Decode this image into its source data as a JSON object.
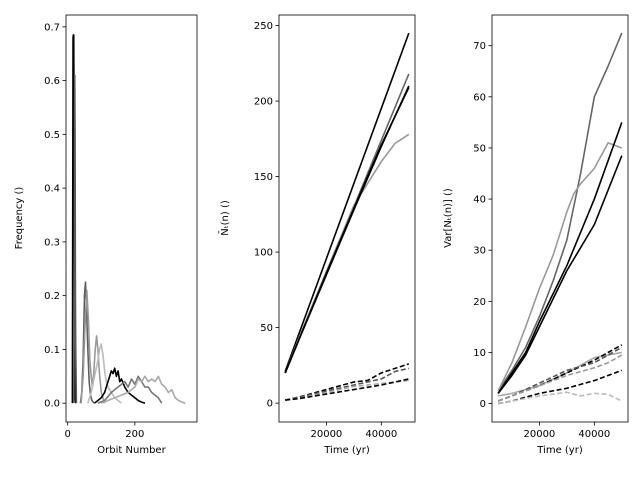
{
  "chart_data": [
    {
      "type": "line",
      "xlabel": "Orbit Number",
      "ylabel": "Frequency ()",
      "xlim": [
        -5,
        385
      ],
      "ylim": [
        -0.035,
        0.722
      ],
      "xticks": [
        0,
        200
      ],
      "yticks": [
        0.0,
        0.1,
        0.2,
        0.3,
        0.4,
        0.5,
        0.6,
        0.7
      ],
      "ytick_labels": [
        "0.0",
        "0.1",
        "0.2",
        "0.3",
        "0.4",
        "0.5",
        "0.6",
        "0.7"
      ],
      "series": [
        {
          "color": "#000000",
          "style": "solid",
          "x": [
            14,
            16,
            17,
            18,
            19,
            20,
            21,
            22,
            24
          ],
          "y": [
            0.0,
            0.68,
            0.685,
            0.685,
            0.5,
            0.2,
            0.05,
            0.01,
            0.0
          ]
        },
        {
          "color": "#5a5a5a",
          "style": "solid",
          "x": [
            18,
            20,
            21,
            22,
            23,
            24,
            26
          ],
          "y": [
            0.0,
            0.2,
            0.61,
            0.5,
            0.2,
            0.1,
            0.0
          ]
        },
        {
          "color": "#606060",
          "style": "solid",
          "x": [
            38,
            42,
            46,
            50,
            53,
            56,
            60,
            64,
            68,
            72,
            76,
            80
          ],
          "y": [
            0.0,
            0.02,
            0.08,
            0.2,
            0.225,
            0.18,
            0.1,
            0.04,
            0.015,
            0.005,
            0.002,
            0.0
          ]
        },
        {
          "color": "#999999",
          "style": "solid",
          "x": [
            40,
            46,
            52,
            57,
            62,
            66,
            70,
            74,
            78,
            82,
            86,
            90,
            94,
            100,
            110
          ],
          "y": [
            0.0,
            0.05,
            0.15,
            0.21,
            0.15,
            0.08,
            0.05,
            0.03,
            0.06,
            0.1,
            0.125,
            0.1,
            0.06,
            0.02,
            0.0
          ]
        },
        {
          "color": "#bbbbbb",
          "style": "solid",
          "x": [
            60,
            70,
            80,
            90,
            95,
            100,
            105,
            110,
            115,
            120,
            130,
            140,
            150,
            160
          ],
          "y": [
            0.0,
            0.02,
            0.05,
            0.08,
            0.1,
            0.11,
            0.09,
            0.06,
            0.04,
            0.03,
            0.02,
            0.01,
            0.005,
            0.0
          ]
        },
        {
          "color": "#000000",
          "style": "solid",
          "x": [
            80,
            90,
            100,
            110,
            115,
            120,
            125,
            130,
            135,
            140,
            145,
            150,
            155,
            160,
            170,
            180,
            190,
            200,
            210,
            220,
            230
          ],
          "y": [
            0.0,
            0.005,
            0.01,
            0.02,
            0.03,
            0.04,
            0.05,
            0.06,
            0.055,
            0.065,
            0.05,
            0.06,
            0.04,
            0.045,
            0.03,
            0.02,
            0.015,
            0.01,
            0.005,
            0.002,
            0.0
          ]
        },
        {
          "color": "#777777",
          "style": "solid",
          "x": [
            90,
            110,
            130,
            150,
            160,
            170,
            180,
            190,
            200,
            210,
            220,
            230,
            240,
            250,
            260,
            270,
            280
          ],
          "y": [
            0.0,
            0.005,
            0.02,
            0.03,
            0.035,
            0.04,
            0.03,
            0.045,
            0.035,
            0.05,
            0.04,
            0.03,
            0.03,
            0.02,
            0.015,
            0.01,
            0.0
          ]
        },
        {
          "color": "#aaaaaa",
          "style": "solid",
          "x": [
            100,
            120,
            140,
            160,
            180,
            200,
            210,
            220,
            230,
            240,
            250,
            260,
            270,
            280,
            290,
            300,
            310,
            320,
            330,
            340,
            350
          ],
          "y": [
            0.0,
            0.005,
            0.01,
            0.015,
            0.02,
            0.03,
            0.045,
            0.04,
            0.05,
            0.04,
            0.045,
            0.04,
            0.05,
            0.035,
            0.03,
            0.02,
            0.025,
            0.01,
            0.005,
            0.002,
            0.0
          ]
        }
      ]
    },
    {
      "type": "line",
      "xlabel": "Time (yr)",
      "ylabel_html": "N̄ₜ(n) ()",
      "xlim": [
        2750,
        52250
      ],
      "ylim": [
        -12.5,
        257
      ],
      "xticks": [
        20000,
        40000
      ],
      "xtick_labels": [
        "20000",
        "40000"
      ],
      "yticks": [
        0,
        50,
        100,
        150,
        200,
        250
      ],
      "ytick_labels": [
        "0",
        "50",
        "100",
        "150",
        "200",
        "250"
      ],
      "series": [
        {
          "color": "#000000",
          "style": "solid",
          "x": [
            5000,
            50000
          ],
          "y": [
            21,
            245
          ]
        },
        {
          "color": "#666666",
          "style": "solid",
          "x": [
            5000,
            10000,
            20000,
            30000,
            40000,
            50000
          ],
          "y": [
            20,
            43,
            87,
            130,
            174,
            218
          ]
        },
        {
          "color": "#999999",
          "style": "solid",
          "x": [
            5000,
            10000,
            20000,
            30000,
            40000,
            45000,
            50000
          ],
          "y": [
            20,
            43,
            87,
            131,
            160,
            172,
            178
          ]
        },
        {
          "color": "#000000",
          "style": "solid",
          "x": [
            5000,
            10000,
            20000,
            30000,
            40000,
            50000
          ],
          "y": [
            20,
            42,
            85,
            128,
            170,
            210
          ]
        },
        {
          "color": "#000000",
          "style": "solid",
          "x": [
            5000,
            10000,
            20000,
            30000,
            40000,
            50000
          ],
          "y": [
            20,
            42,
            86,
            129,
            171,
            209
          ]
        },
        {
          "color": "#000000",
          "style": "dashed",
          "x": [
            5000,
            10000,
            20000,
            30000,
            35000,
            40000,
            45000,
            50000
          ],
          "y": [
            2,
            4,
            9,
            14,
            15,
            20,
            23,
            26
          ]
        },
        {
          "color": "#555555",
          "style": "dashed",
          "x": [
            5000,
            10000,
            20000,
            30000,
            40000,
            45000,
            50000
          ],
          "y": [
            2,
            4,
            8,
            12,
            16,
            21,
            23
          ]
        },
        {
          "color": "#aaaaaa",
          "style": "dashed",
          "x": [
            5000,
            10000,
            20000,
            30000,
            40000,
            50000
          ],
          "y": [
            2,
            3,
            7,
            11,
            13,
            15
          ]
        },
        {
          "color": "#000000",
          "style": "dashed",
          "x": [
            5000,
            10000,
            20000,
            30000,
            40000,
            50000
          ],
          "y": [
            2,
            3,
            6,
            9,
            12,
            16
          ]
        }
      ]
    },
    {
      "type": "line",
      "xlabel": "Time (yr)",
      "ylabel_html": "Var[Nₜ(n)] ()",
      "xlim": [
        2750,
        52250
      ],
      "ylim": [
        -3.6,
        76
      ],
      "xticks": [
        20000,
        40000
      ],
      "xtick_labels": [
        "20000",
        "40000"
      ],
      "yticks": [
        0,
        10,
        20,
        30,
        40,
        50,
        60,
        70
      ],
      "ytick_labels": [
        "0",
        "10",
        "20",
        "30",
        "40",
        "50",
        "60",
        "70"
      ],
      "series": [
        {
          "color": "#666666",
          "style": "solid",
          "x": [
            5000,
            10000,
            15000,
            20000,
            25000,
            30000,
            35000,
            40000,
            45000,
            50000
          ],
          "y": [
            2.5,
            6.5,
            11,
            17,
            24,
            32,
            45,
            60,
            66,
            72.5
          ]
        },
        {
          "color": "#999999",
          "style": "solid",
          "x": [
            5000,
            10000,
            15000,
            20000,
            25000,
            30000,
            32500,
            35000,
            40000,
            45000,
            50000
          ],
          "y": [
            2.5,
            8,
            15,
            22.5,
            29,
            37.5,
            41,
            43,
            46,
            51,
            50
          ]
        },
        {
          "color": "#000000",
          "style": "solid",
          "x": [
            5000,
            10000,
            15000,
            20000,
            30000,
            40000,
            50000
          ],
          "y": [
            2,
            6,
            10,
            16,
            27,
            40,
            55
          ]
        },
        {
          "color": "#000000",
          "style": "solid",
          "x": [
            5000,
            10000,
            15000,
            20000,
            30000,
            40000,
            50000
          ],
          "y": [
            2,
            5.5,
            9.5,
            15,
            26,
            35,
            48.5
          ]
        },
        {
          "color": "#aaaaaa",
          "style": "solid",
          "x": [
            5000,
            10000,
            20000,
            30000,
            40000,
            50000
          ],
          "y": [
            1.5,
            2,
            3.5,
            6,
            9,
            10
          ]
        },
        {
          "color": "#000000",
          "style": "dashed",
          "x": [
            5000,
            10000,
            20000,
            30000,
            40000,
            50000
          ],
          "y": [
            0.5,
            1.5,
            3.5,
            6,
            8.5,
            11.5
          ]
        },
        {
          "color": "#555555",
          "style": "dashed",
          "x": [
            5000,
            10000,
            20000,
            30000,
            40000,
            50000
          ],
          "y": [
            0.5,
            1.5,
            4,
            6.5,
            8,
            11
          ]
        },
        {
          "color": "#999999",
          "style": "dashed",
          "x": [
            5000,
            10000,
            20000,
            30000,
            40000,
            45000,
            50000
          ],
          "y": [
            0.5,
            1.5,
            3.5,
            5.5,
            7,
            8,
            9.5
          ]
        },
        {
          "color": "#000000",
          "style": "dashed",
          "x": [
            5000,
            10000,
            20000,
            30000,
            40000,
            50000
          ],
          "y": [
            0,
            0.5,
            2,
            3,
            4.5,
            6.5
          ]
        },
        {
          "color": "#bbbbbb",
          "style": "dashed",
          "x": [
            5000,
            10000,
            20000,
            30000,
            35000,
            40000,
            45000,
            50000
          ],
          "y": [
            0,
            0.5,
            1.5,
            2.2,
            1.5,
            2,
            1.8,
            0.5
          ]
        }
      ]
    }
  ]
}
